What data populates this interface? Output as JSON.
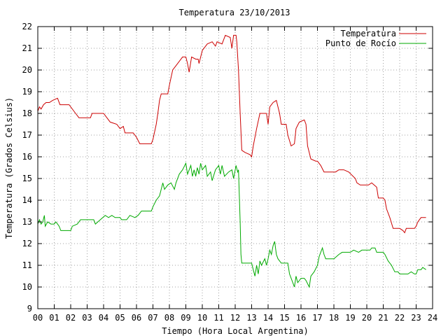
{
  "chart_data": {
    "type": "line",
    "title": "Temperatura 23/10/2013",
    "xlabel": "Tiempo (Hora Local Argentina)",
    "ylabel": "Temperatura (Grados Celsius)",
    "xlim": [
      0,
      24
    ],
    "ylim": [
      9,
      22
    ],
    "x_ticks": [
      "00",
      "01",
      "02",
      "03",
      "04",
      "05",
      "06",
      "07",
      "08",
      "09",
      "10",
      "11",
      "12",
      "13",
      "14",
      "15",
      "16",
      "17",
      "18",
      "19",
      "20",
      "21",
      "22",
      "23",
      "24"
    ],
    "y_ticks": [
      "9",
      "10",
      "11",
      "12",
      "13",
      "14",
      "15",
      "16",
      "17",
      "18",
      "19",
      "20",
      "21",
      "22"
    ],
    "grid": true,
    "legend_position": "top-right",
    "series": [
      {
        "name": "Temperatura",
        "color": "#cc0000",
        "points": [
          [
            0.0,
            18.1
          ],
          [
            0.1,
            18.3
          ],
          [
            0.2,
            18.2
          ],
          [
            0.35,
            18.4
          ],
          [
            0.5,
            18.5
          ],
          [
            0.7,
            18.5
          ],
          [
            0.9,
            18.6
          ],
          [
            1.2,
            18.7
          ],
          [
            1.35,
            18.4
          ],
          [
            1.9,
            18.4
          ],
          [
            2.3,
            18.0
          ],
          [
            2.5,
            17.8
          ],
          [
            3.2,
            17.8
          ],
          [
            3.3,
            18.0
          ],
          [
            4.0,
            18.0
          ],
          [
            4.2,
            17.8
          ],
          [
            4.4,
            17.6
          ],
          [
            4.8,
            17.5
          ],
          [
            5.0,
            17.3
          ],
          [
            5.2,
            17.4
          ],
          [
            5.3,
            17.1
          ],
          [
            5.8,
            17.1
          ],
          [
            6.0,
            16.9
          ],
          [
            6.2,
            16.6
          ],
          [
            6.9,
            16.6
          ],
          [
            7.0,
            16.8
          ],
          [
            7.2,
            17.5
          ],
          [
            7.3,
            18.0
          ],
          [
            7.4,
            18.6
          ],
          [
            7.5,
            18.9
          ],
          [
            7.9,
            18.9
          ],
          [
            8.0,
            19.3
          ],
          [
            8.2,
            20.0
          ],
          [
            8.5,
            20.3
          ],
          [
            8.8,
            20.6
          ],
          [
            9.0,
            20.6
          ],
          [
            9.1,
            20.3
          ],
          [
            9.2,
            19.9
          ],
          [
            9.35,
            20.6
          ],
          [
            9.6,
            20.5
          ],
          [
            9.75,
            20.5
          ],
          [
            9.8,
            20.3
          ],
          [
            10.0,
            20.9
          ],
          [
            10.3,
            21.2
          ],
          [
            10.6,
            21.3
          ],
          [
            10.8,
            21.1
          ],
          [
            10.9,
            21.3
          ],
          [
            11.2,
            21.2
          ],
          [
            11.4,
            21.6
          ],
          [
            11.7,
            21.5
          ],
          [
            11.8,
            21.0
          ],
          [
            11.9,
            21.6
          ],
          [
            12.05,
            21.6
          ],
          [
            12.1,
            21.3
          ],
          [
            12.2,
            20.0
          ],
          [
            12.3,
            18.0
          ],
          [
            12.4,
            16.3
          ],
          [
            12.6,
            16.2
          ],
          [
            12.9,
            16.1
          ],
          [
            13.0,
            16.0
          ],
          [
            13.1,
            16.5
          ],
          [
            13.3,
            17.3
          ],
          [
            13.5,
            18.0
          ],
          [
            13.9,
            18.0
          ],
          [
            14.0,
            17.5
          ],
          [
            14.1,
            18.3
          ],
          [
            14.3,
            18.5
          ],
          [
            14.5,
            18.6
          ],
          [
            14.7,
            18.0
          ],
          [
            14.8,
            17.5
          ],
          [
            15.1,
            17.5
          ],
          [
            15.2,
            17.0
          ],
          [
            15.4,
            16.5
          ],
          [
            15.6,
            16.6
          ],
          [
            15.7,
            17.3
          ],
          [
            15.9,
            17.6
          ],
          [
            16.2,
            17.7
          ],
          [
            16.3,
            17.5
          ],
          [
            16.4,
            16.5
          ],
          [
            16.6,
            15.9
          ],
          [
            16.9,
            15.8
          ],
          [
            17.0,
            15.8
          ],
          [
            17.2,
            15.6
          ],
          [
            17.4,
            15.3
          ],
          [
            17.6,
            15.3
          ],
          [
            18.1,
            15.3
          ],
          [
            18.3,
            15.4
          ],
          [
            18.6,
            15.4
          ],
          [
            18.9,
            15.3
          ],
          [
            19.3,
            15.0
          ],
          [
            19.4,
            14.8
          ],
          [
            19.6,
            14.7
          ],
          [
            20.1,
            14.7
          ],
          [
            20.3,
            14.8
          ],
          [
            20.6,
            14.6
          ],
          [
            20.7,
            14.1
          ],
          [
            21.0,
            14.1
          ],
          [
            21.1,
            14.0
          ],
          [
            21.2,
            13.6
          ],
          [
            21.4,
            13.2
          ],
          [
            21.6,
            12.7
          ],
          [
            22.0,
            12.7
          ],
          [
            22.2,
            12.6
          ],
          [
            22.3,
            12.5
          ],
          [
            22.4,
            12.7
          ],
          [
            22.7,
            12.7
          ],
          [
            22.9,
            12.7
          ],
          [
            23.0,
            12.8
          ],
          [
            23.1,
            13.0
          ],
          [
            23.3,
            13.2
          ],
          [
            23.6,
            13.2
          ]
        ]
      },
      {
        "name": "Punto de Rocío",
        "color": "#00aa00",
        "points": [
          [
            0.0,
            12.9
          ],
          [
            0.1,
            13.1
          ],
          [
            0.2,
            12.9
          ],
          [
            0.3,
            13.0
          ],
          [
            0.4,
            13.3
          ],
          [
            0.45,
            12.8
          ],
          [
            0.6,
            13.0
          ],
          [
            0.8,
            12.9
          ],
          [
            1.0,
            12.9
          ],
          [
            1.1,
            13.0
          ],
          [
            1.2,
            12.9
          ],
          [
            1.3,
            12.8
          ],
          [
            1.4,
            12.6
          ],
          [
            2.0,
            12.6
          ],
          [
            2.1,
            12.8
          ],
          [
            2.4,
            12.9
          ],
          [
            2.6,
            13.1
          ],
          [
            3.4,
            13.1
          ],
          [
            3.5,
            12.9
          ],
          [
            3.8,
            13.1
          ],
          [
            4.1,
            13.3
          ],
          [
            4.3,
            13.2
          ],
          [
            4.5,
            13.3
          ],
          [
            4.7,
            13.2
          ],
          [
            5.0,
            13.2
          ],
          [
            5.1,
            13.1
          ],
          [
            5.4,
            13.1
          ],
          [
            5.6,
            13.3
          ],
          [
            5.9,
            13.2
          ],
          [
            6.1,
            13.3
          ],
          [
            6.3,
            13.5
          ],
          [
            6.9,
            13.5
          ],
          [
            7.0,
            13.7
          ],
          [
            7.2,
            14.0
          ],
          [
            7.4,
            14.2
          ],
          [
            7.5,
            14.5
          ],
          [
            7.6,
            14.8
          ],
          [
            7.7,
            14.5
          ],
          [
            7.9,
            14.7
          ],
          [
            8.1,
            14.8
          ],
          [
            8.3,
            14.5
          ],
          [
            8.4,
            14.8
          ],
          [
            8.6,
            15.2
          ],
          [
            8.8,
            15.4
          ],
          [
            9.0,
            15.7
          ],
          [
            9.1,
            15.2
          ],
          [
            9.3,
            15.6
          ],
          [
            9.4,
            15.1
          ],
          [
            9.5,
            15.4
          ],
          [
            9.6,
            15.1
          ],
          [
            9.7,
            15.5
          ],
          [
            9.8,
            15.2
          ],
          [
            9.9,
            15.7
          ],
          [
            10.0,
            15.4
          ],
          [
            10.2,
            15.6
          ],
          [
            10.3,
            15.1
          ],
          [
            10.5,
            15.3
          ],
          [
            10.6,
            14.9
          ],
          [
            10.8,
            15.4
          ],
          [
            11.0,
            15.6
          ],
          [
            11.1,
            15.2
          ],
          [
            11.2,
            15.6
          ],
          [
            11.35,
            15.1
          ],
          [
            11.6,
            15.3
          ],
          [
            11.8,
            15.4
          ],
          [
            11.9,
            15.0
          ],
          [
            12.05,
            15.6
          ],
          [
            12.15,
            15.3
          ],
          [
            12.2,
            15.4
          ],
          [
            12.3,
            13.0
          ],
          [
            12.35,
            11.5
          ],
          [
            12.4,
            11.1
          ],
          [
            13.0,
            11.1
          ],
          [
            13.1,
            10.8
          ],
          [
            13.2,
            10.5
          ],
          [
            13.3,
            11.0
          ],
          [
            13.4,
            10.6
          ],
          [
            13.5,
            11.2
          ],
          [
            13.6,
            11.0
          ],
          [
            13.8,
            11.3
          ],
          [
            13.9,
            11.0
          ],
          [
            14.0,
            11.3
          ],
          [
            14.1,
            11.7
          ],
          [
            14.2,
            11.5
          ],
          [
            14.3,
            11.9
          ],
          [
            14.4,
            12.1
          ],
          [
            14.5,
            11.5
          ],
          [
            14.6,
            11.3
          ],
          [
            14.8,
            11.1
          ],
          [
            15.2,
            11.1
          ],
          [
            15.3,
            10.6
          ],
          [
            15.5,
            10.2
          ],
          [
            15.6,
            10.0
          ],
          [
            15.7,
            10.5
          ],
          [
            15.8,
            10.2
          ],
          [
            16.0,
            10.4
          ],
          [
            16.2,
            10.4
          ],
          [
            16.3,
            10.3
          ],
          [
            16.5,
            10.0
          ],
          [
            16.6,
            10.5
          ],
          [
            16.8,
            10.7
          ],
          [
            17.0,
            11.0
          ],
          [
            17.1,
            11.4
          ],
          [
            17.2,
            11.6
          ],
          [
            17.3,
            11.8
          ],
          [
            17.4,
            11.5
          ],
          [
            17.5,
            11.3
          ],
          [
            18.0,
            11.3
          ],
          [
            18.3,
            11.5
          ],
          [
            18.5,
            11.6
          ],
          [
            18.6,
            11.6
          ],
          [
            19.0,
            11.6
          ],
          [
            19.2,
            11.7
          ],
          [
            19.5,
            11.6
          ],
          [
            19.7,
            11.7
          ],
          [
            20.2,
            11.7
          ],
          [
            20.3,
            11.8
          ],
          [
            20.5,
            11.8
          ],
          [
            20.6,
            11.6
          ],
          [
            21.0,
            11.6
          ],
          [
            21.1,
            11.5
          ],
          [
            21.3,
            11.2
          ],
          [
            21.5,
            11.0
          ],
          [
            21.7,
            10.7
          ],
          [
            21.9,
            10.7
          ],
          [
            22.0,
            10.6
          ],
          [
            22.5,
            10.6
          ],
          [
            22.7,
            10.7
          ],
          [
            22.9,
            10.6
          ],
          [
            23.0,
            10.6
          ],
          [
            23.1,
            10.8
          ],
          [
            23.3,
            10.8
          ],
          [
            23.4,
            10.9
          ],
          [
            23.6,
            10.8
          ]
        ]
      }
    ]
  }
}
